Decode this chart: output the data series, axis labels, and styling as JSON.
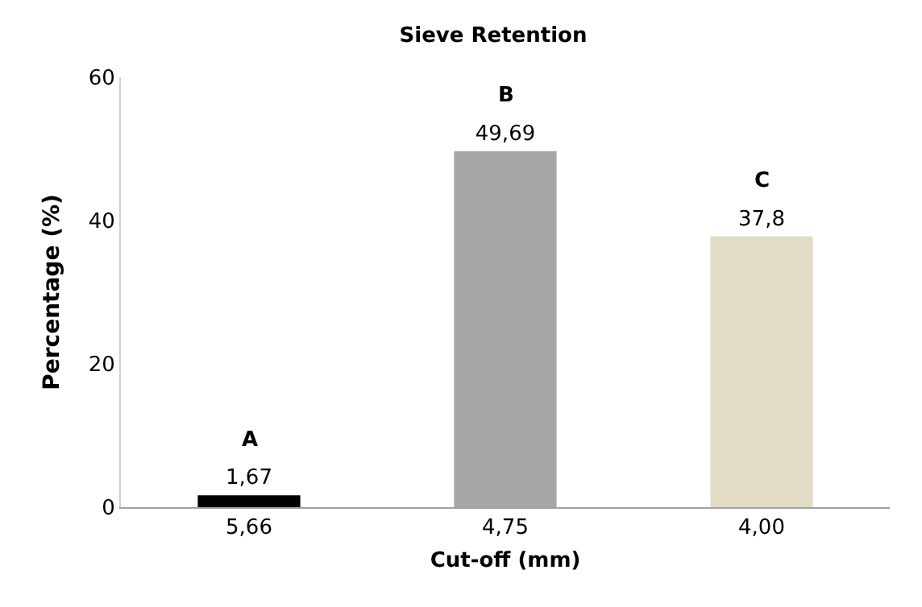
{
  "chart_data": {
    "type": "bar",
    "title": "Sieve Retention",
    "xlabel": "Cut-off (mm)",
    "ylabel": "Percentage (%)",
    "categories": [
      "5,66",
      "4,75",
      "4,00"
    ],
    "values": [
      1.67,
      49.69,
      37.8
    ],
    "colors": [
      "#000000",
      "#a6a6a6",
      "#e2dcc4"
    ],
    "value_labels": [
      "1,67",
      "49,69",
      "37,8"
    ],
    "annotations": [
      {
        "text": "A",
        "x": "5,66",
        "y": 1.67
      },
      {
        "text": "B",
        "x": "4,75",
        "y": 49.69
      },
      {
        "text": "C",
        "x": "4,00",
        "y": 37.8
      }
    ],
    "ylim": [
      0,
      60
    ],
    "yticks": [
      0,
      20,
      40,
      60
    ],
    "legend": false
  }
}
